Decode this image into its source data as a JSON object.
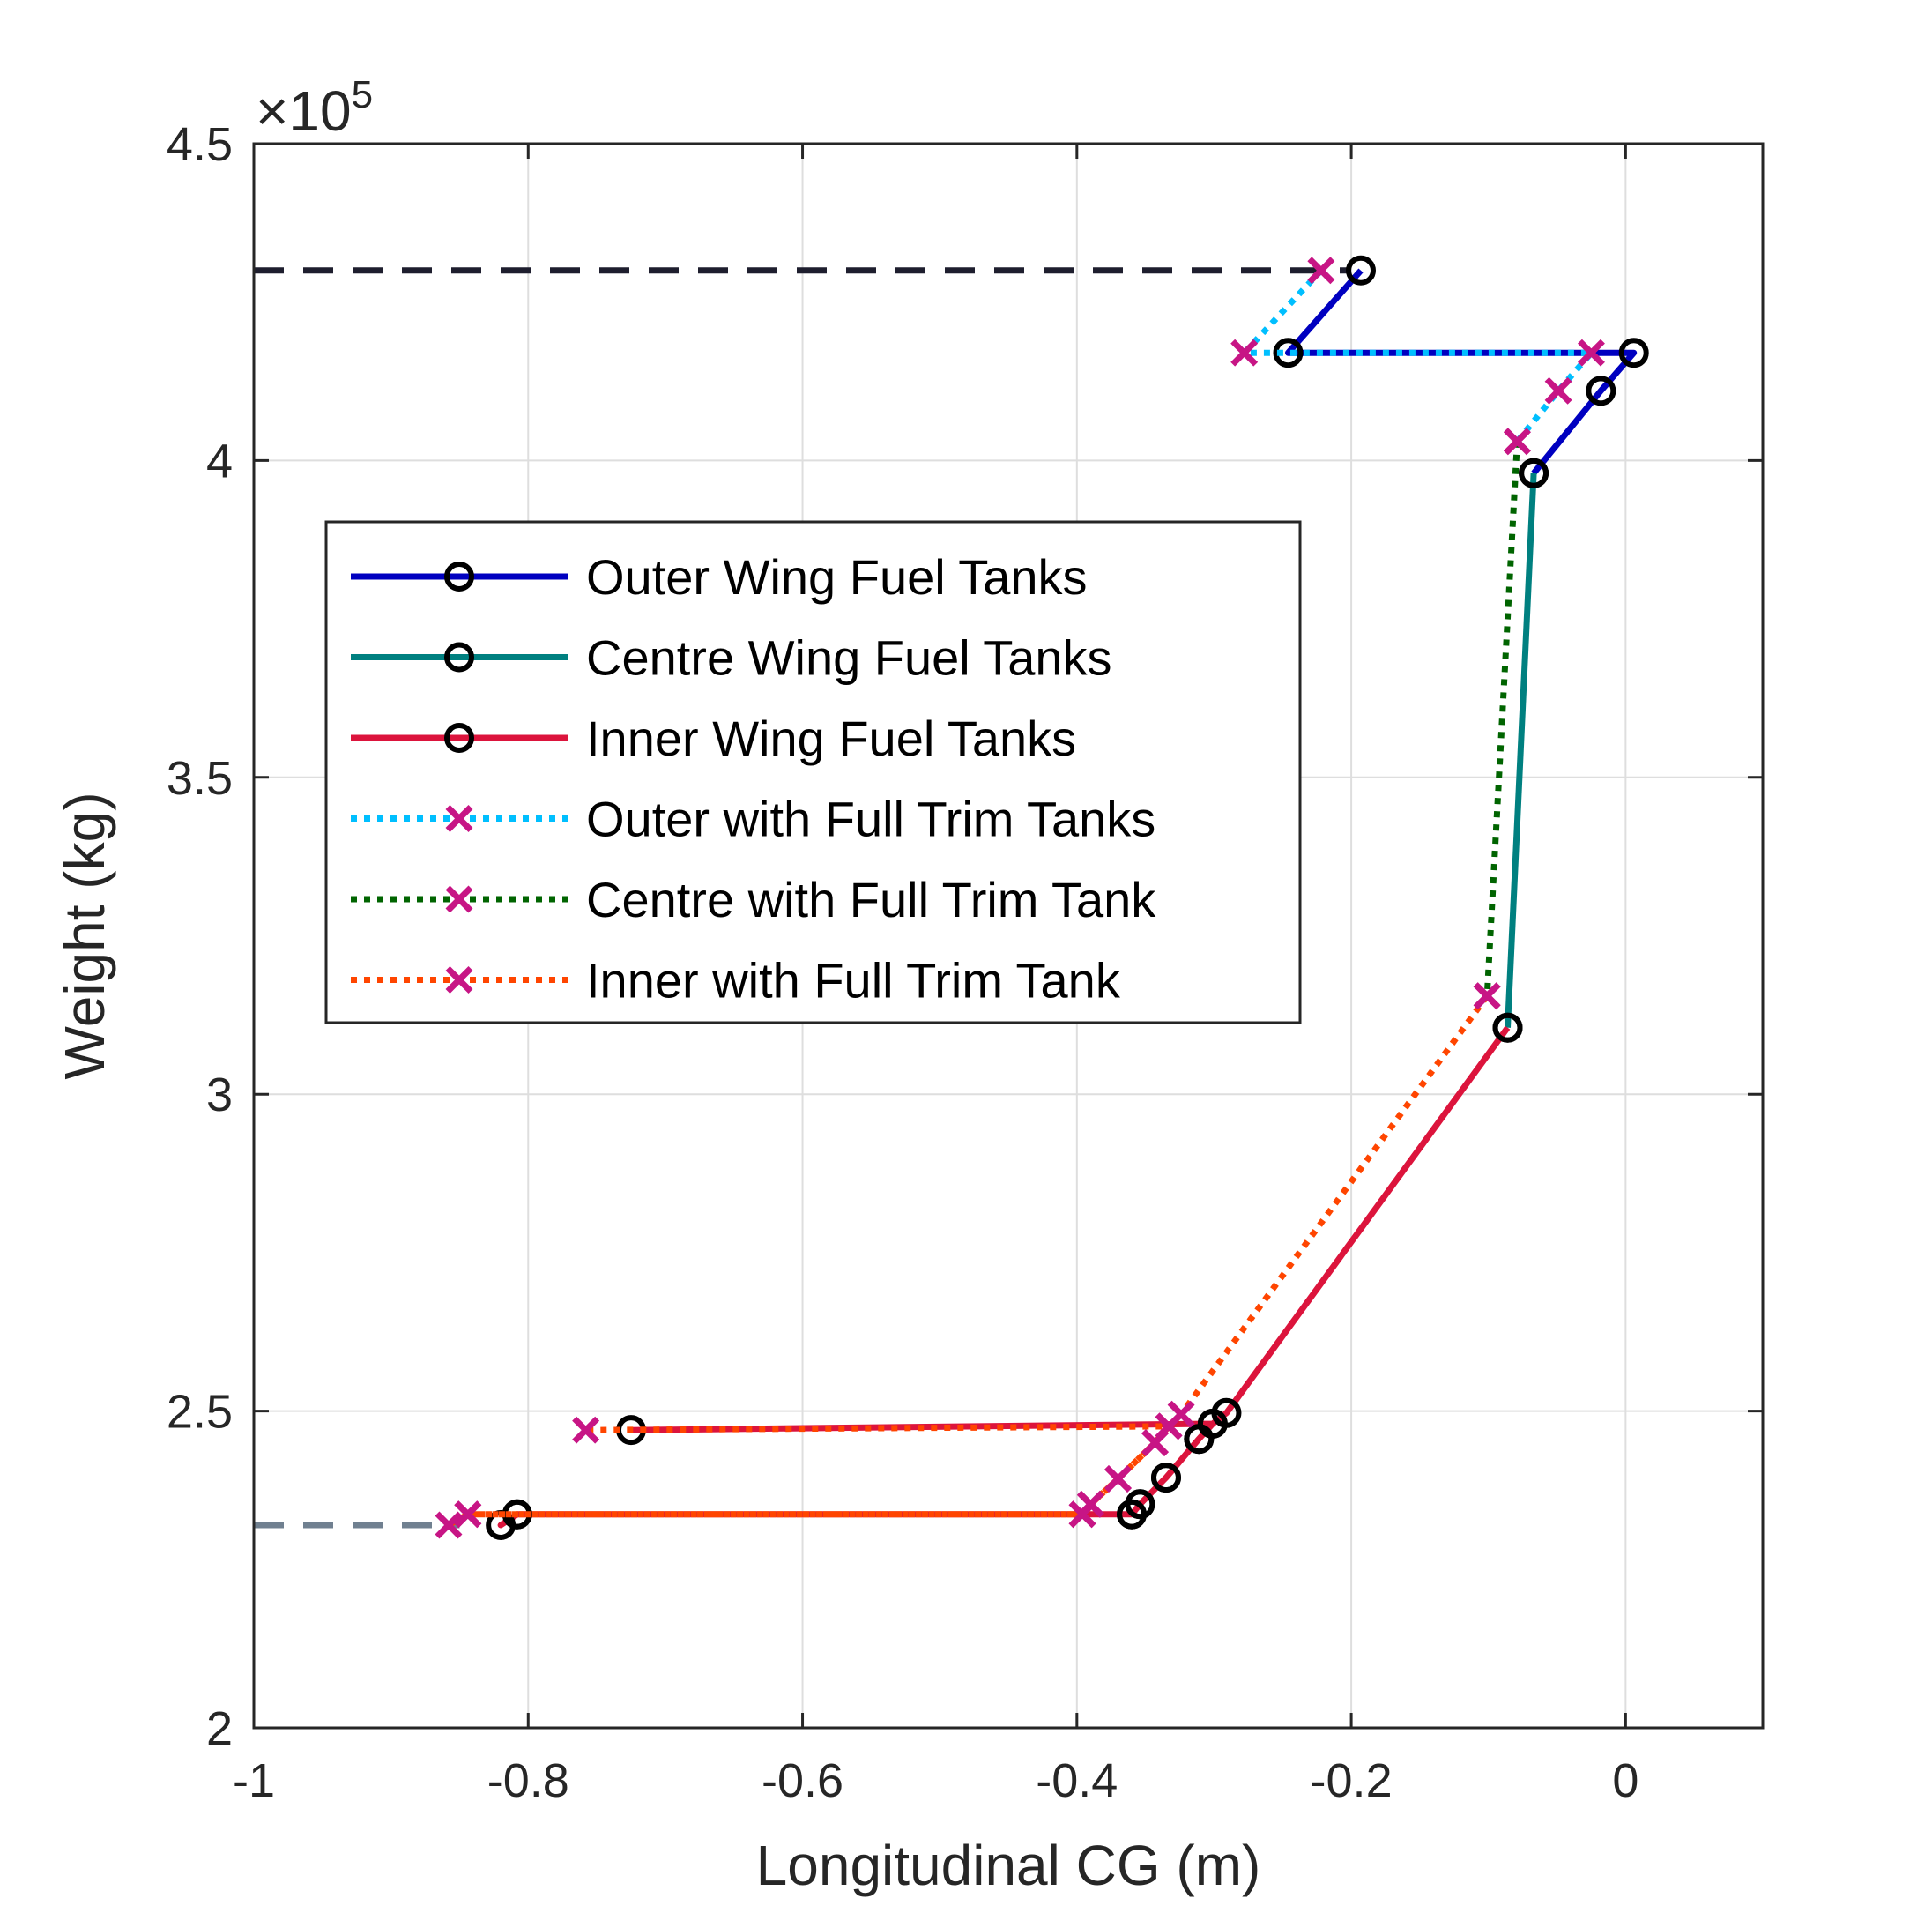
{
  "chart_data": {
    "type": "line",
    "xlabel": "Longitudinal CG (m)",
    "ylabel": "Weight (kg)",
    "xlim": [
      -1,
      0.1
    ],
    "ylim": [
      200000,
      450000
    ],
    "xticks": [
      -1,
      -0.8,
      -0.6,
      -0.4,
      -0.2,
      0
    ],
    "xtick_labels": [
      "-1",
      "-0.8",
      "-0.6",
      "-0.4",
      "-0.2",
      "0"
    ],
    "yticks": [
      200000,
      250000,
      300000,
      350000,
      400000,
      450000
    ],
    "ytick_labels": [
      "2",
      "2.5",
      "3",
      "3.5",
      "4",
      "4.5"
    ],
    "y_exponent": {
      "prefix": "×10",
      "power": "5"
    },
    "grid": true,
    "legend_position": "upper-left",
    "series": [
      {
        "name": "Outer Wing Fuel Tanks",
        "color": "#0000c0",
        "line": "solid",
        "marker": "circle",
        "x": [
          -0.193,
          -0.246,
          0.006,
          -0.018,
          -0.067
        ],
        "y": [
          430000,
          417000,
          417000,
          411000,
          398000
        ]
      },
      {
        "name": "Centre Wing Fuel Tanks",
        "color": "#008080",
        "line": "solid",
        "marker": "circle",
        "x": [
          -0.067,
          -0.086
        ],
        "y": [
          398000,
          310500
        ]
      },
      {
        "name": "Inner Wing Fuel Tanks",
        "color": "#dc143c",
        "line": "solid",
        "marker": "circle",
        "x": [
          -0.086,
          -0.291,
          -0.301,
          -0.311,
          -0.335,
          -0.354,
          -0.36,
          -0.808,
          -0.82,
          -0.808,
          -0.36,
          -0.354,
          -0.335,
          -0.311,
          -0.301,
          -0.725
        ],
        "y": [
          310500,
          249700,
          248000,
          245600,
          239500,
          235300,
          233700,
          233700,
          232000,
          233700,
          233700,
          235300,
          239500,
          245600,
          248000,
          247000
        ]
      },
      {
        "name": "Outer with Full Trim Tanks",
        "color": "#00bfff",
        "line": "dotted",
        "marker": "x",
        "x": [
          -0.222,
          -0.278,
          -0.025,
          -0.049,
          -0.079
        ],
        "y": [
          430000,
          417000,
          417000,
          411000,
          403000
        ]
      },
      {
        "name": "Centre with Full Trim Tank",
        "color": "#006400",
        "line": "dotted",
        "marker": "x",
        "x": [
          -0.079,
          -0.101
        ],
        "y": [
          403000,
          315500
        ]
      },
      {
        "name": "Inner with Full Trim Tank",
        "color": "#ff4500",
        "line": "dotted",
        "marker": "x",
        "x": [
          -0.101,
          -0.324,
          -0.333,
          -0.343,
          -0.37,
          -0.39,
          -0.396,
          -0.844,
          -0.858,
          -0.844,
          -0.396,
          -0.39,
          -0.37,
          -0.343,
          -0.333,
          -0.758
        ],
        "y": [
          315500,
          249500,
          247600,
          245000,
          239300,
          235300,
          233700,
          233700,
          232000,
          233700,
          233700,
          235300,
          239300,
          245000,
          247600,
          247000
        ]
      }
    ],
    "reference_lines": [
      {
        "color": "#1e1e2e",
        "line": "dashed",
        "y": 430000,
        "x_from": -1,
        "x_to": -0.2
      },
      {
        "color": "#708090",
        "line": "dashed",
        "y": 232000,
        "x_from": -1,
        "x_to": -0.85
      }
    ],
    "marker_color": "#c71585"
  }
}
